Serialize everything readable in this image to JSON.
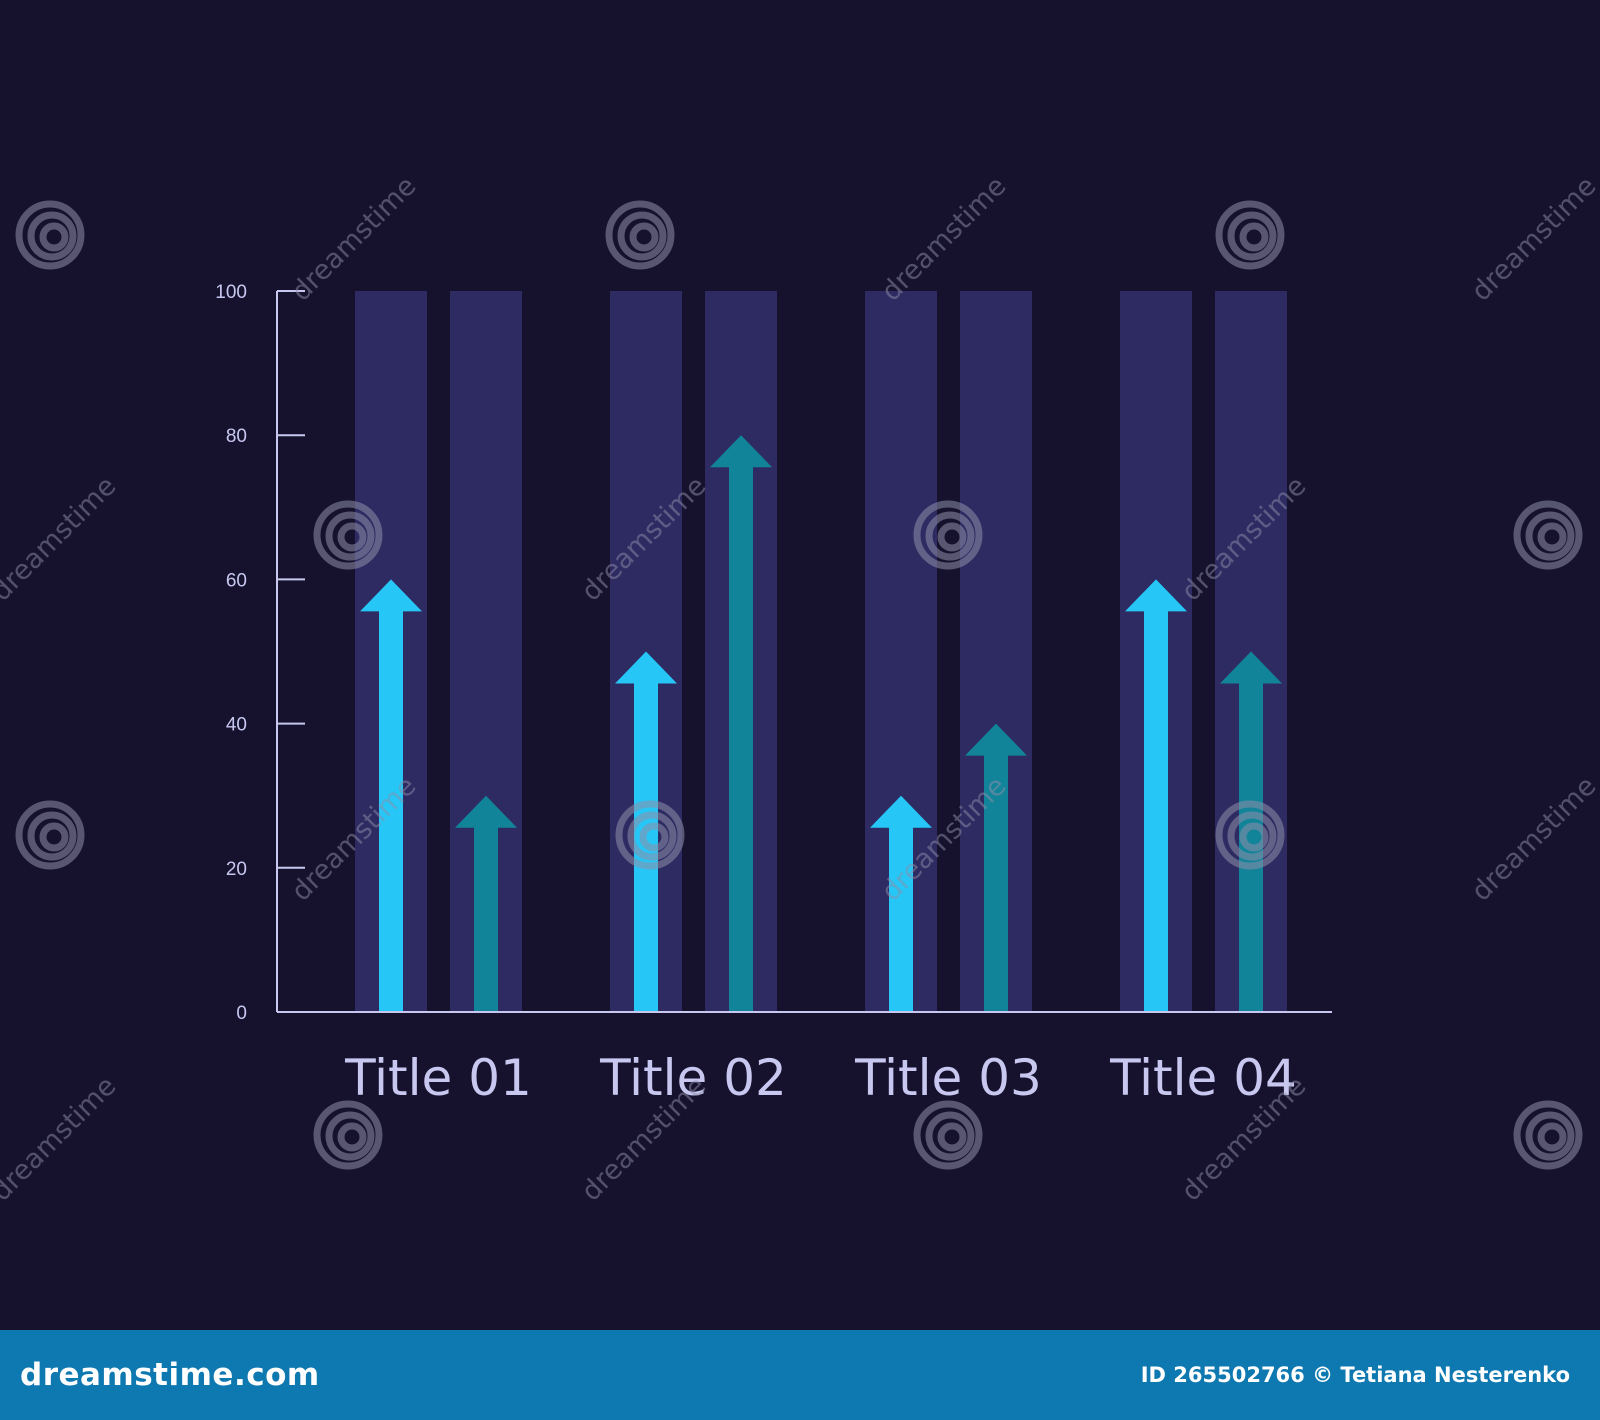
{
  "colors": {
    "background": "#16122e",
    "column_band": "#2e2b62",
    "axis": "#c7c7ef",
    "series_1": "#26c6f6",
    "series_2": "#12849a",
    "footer": "#0e78b0",
    "watermark": "#8e8ea8"
  },
  "chart_data": {
    "type": "bar",
    "categories": [
      "Title 01",
      "Title 02",
      "Title 03",
      "Title 04"
    ],
    "series": [
      {
        "values": [
          60,
          50,
          30,
          60
        ]
      },
      {
        "values": [
          30,
          80,
          40,
          50
        ]
      }
    ],
    "ylim": [
      0,
      100
    ],
    "yticks": [
      "0",
      "20",
      "40",
      "60",
      "80",
      "100"
    ],
    "mark": "upward-arrow",
    "background_bands": true,
    "grid": false,
    "legend": "none"
  },
  "watermark": {
    "text": "dreamstime",
    "icon": "spiral-icon"
  },
  "footer": {
    "brand": "dreamstime.com",
    "credit": "ID 265502766 © Tetiana Nesterenko"
  }
}
